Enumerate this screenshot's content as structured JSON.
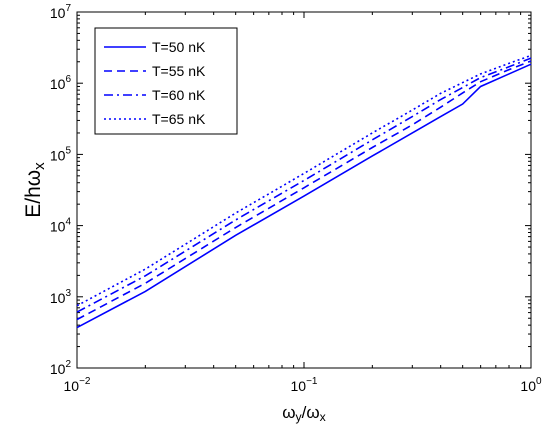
{
  "chart_data": {
    "type": "line",
    "xlabel": "ω_y/ω_x",
    "ylabel": "E/hω_x",
    "x_scale": "log",
    "y_scale": "log",
    "xlim": [
      0.01,
      1
    ],
    "ylim": [
      100,
      10000000
    ],
    "x_ticks": [
      {
        "value": 0.01,
        "base": "10",
        "exp": "−2"
      },
      {
        "value": 0.1,
        "base": "10",
        "exp": "−1"
      },
      {
        "value": 1,
        "base": "10",
        "exp": "0"
      }
    ],
    "y_ticks": [
      {
        "value": 100,
        "base": "10",
        "exp": "2"
      },
      {
        "value": 1000,
        "base": "10",
        "exp": "3"
      },
      {
        "value": 10000,
        "base": "10",
        "exp": "4"
      },
      {
        "value": 100000,
        "base": "10",
        "exp": "5"
      },
      {
        "value": 1000000,
        "base": "10",
        "exp": "6"
      },
      {
        "value": 10000000,
        "base": "10",
        "exp": "7"
      }
    ],
    "grid": false,
    "legend_position": "top-left",
    "series": [
      {
        "name": "T=50 nK",
        "style": "solid",
        "color": "#0000ff",
        "x": [
          0.01,
          0.02,
          0.05,
          0.1,
          0.2,
          0.3,
          0.4,
          0.5,
          0.6,
          0.8,
          1.0
        ],
        "y": [
          370,
          1190,
          7300,
          26000,
          95000,
          200000,
          340000,
          510000,
          900000,
          1350000,
          1850000
        ]
      },
      {
        "name": "T=55 nK",
        "style": "dashed",
        "color": "#0000ff",
        "x": [
          0.01,
          0.02,
          0.05,
          0.1,
          0.2,
          0.3,
          0.4,
          0.5,
          0.6,
          0.8,
          1.0
        ],
        "y": [
          480,
          1550,
          9400,
          34000,
          125000,
          260000,
          460000,
          730000,
          1050000,
          1550000,
          2050000
        ]
      },
      {
        "name": "T=60 nK",
        "style": "dashdot",
        "color": "#0000ff",
        "x": [
          0.01,
          0.02,
          0.05,
          0.1,
          0.2,
          0.3,
          0.4,
          0.5,
          0.6,
          0.8,
          1.0
        ],
        "y": [
          610,
          1970,
          12000,
          43000,
          160000,
          340000,
          590000,
          870000,
          1200000,
          1700000,
          2250000
        ]
      },
      {
        "name": "T=65 nK",
        "style": "dotted",
        "color": "#0000ff",
        "x": [
          0.01,
          0.02,
          0.05,
          0.1,
          0.2,
          0.3,
          0.4,
          0.5,
          0.6,
          0.8,
          1.0
        ],
        "y": [
          750,
          2450,
          15000,
          54000,
          200000,
          420000,
          720000,
          1020000,
          1350000,
          1900000,
          2450000
        ]
      }
    ]
  }
}
